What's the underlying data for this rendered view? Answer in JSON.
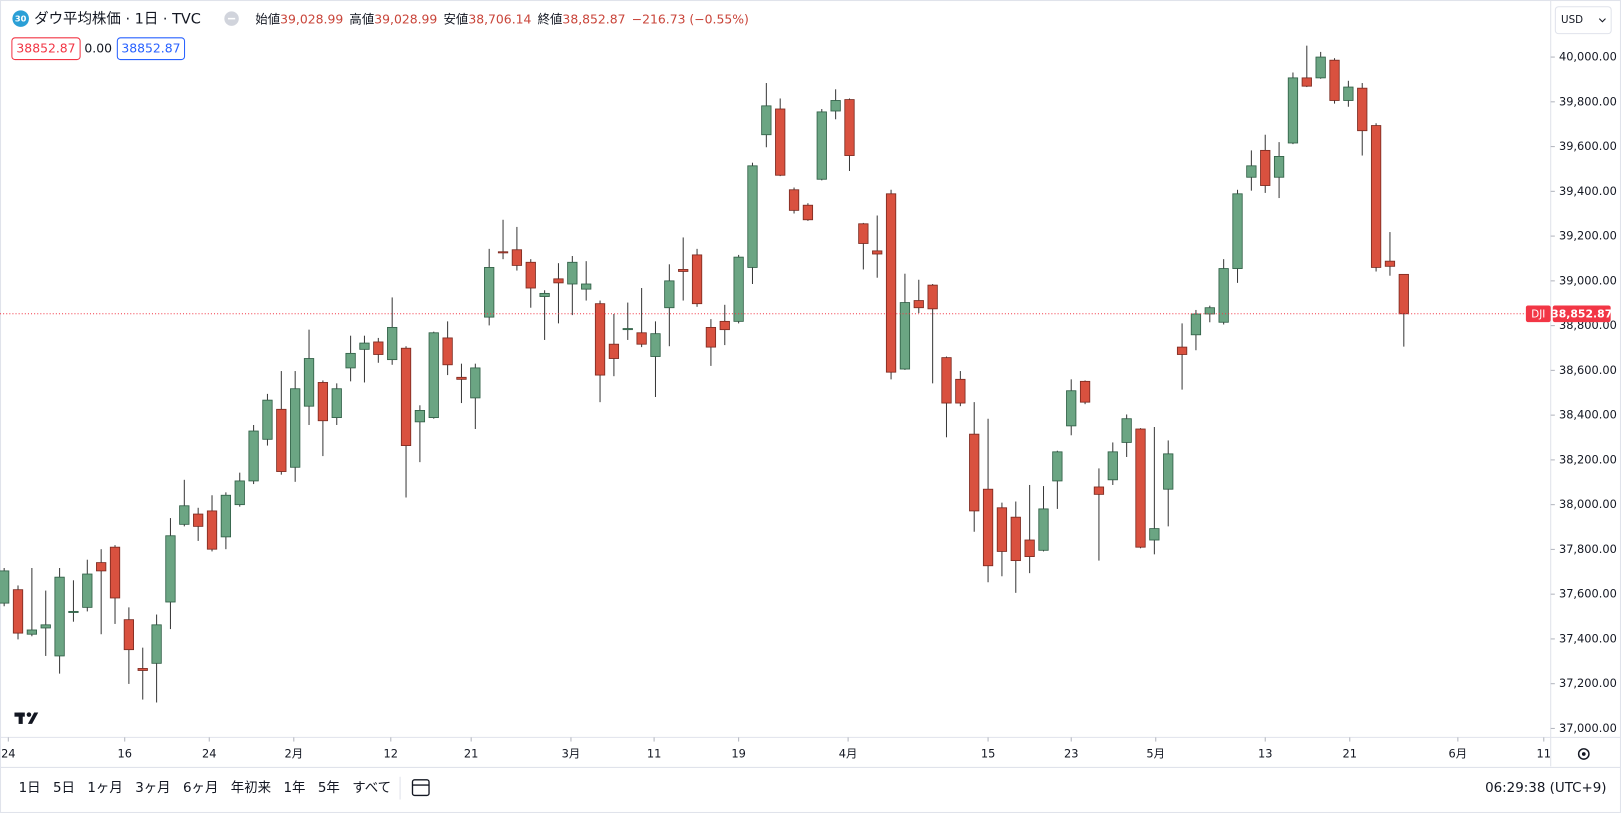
{
  "header": {
    "badge": "30",
    "title": "ダウ平均株価 · 1日 · TVC",
    "ohlc": [
      {
        "label": "始値",
        "value": "39,028.99"
      },
      {
        "label": "高値",
        "value": "39,028.99"
      },
      {
        "label": "安値",
        "value": "38,706.14"
      },
      {
        "label": "終値",
        "value": "38,852.87"
      }
    ],
    "change": "−216.73 (−0.55%)"
  },
  "price_boxes": [
    "38852.87",
    "0.00",
    "38852.87"
  ],
  "currency": "USD",
  "toolbar": {
    "ranges": [
      "1日",
      "5日",
      "1ヶ月",
      "3ヶ月",
      "6ヶ月",
      "年初来",
      "1年",
      "5年",
      "すべて"
    ],
    "clock": "06:29:38 (UTC+9)"
  },
  "chart_data": {
    "type": "candlestick",
    "up_color": "#6ba583",
    "down_color": "#d9513f",
    "open": [
      37560,
      37620,
      37421,
      37449,
      37324,
      37518,
      37541,
      37741,
      37810,
      37486,
      37268,
      37291,
      37565,
      37912,
      37958,
      37972,
      37856,
      38000,
      38106,
      38292,
      38426,
      38167,
      38440,
      38546,
      38389,
      38611,
      38694,
      38727,
      38648,
      38699,
      38370,
      38389,
      38745,
      38569,
      38477,
      38838,
      39130,
      39139,
      39083,
      38930,
      39009,
      38986,
      38963,
      38898,
      38717,
      38782,
      38768,
      38662,
      38880,
      39051,
      39116,
      38792,
      38819,
      38819,
      39060,
      39653,
      39768,
      39407,
      39338,
      39454,
      39759,
      39810,
      39255,
      39134,
      39389,
      38606,
      38912,
      38981,
      38657,
      38560,
      38315,
      38069,
      37986,
      37944,
      37842,
      37796,
      38106,
      38352,
      38551,
      38079,
      38111,
      38278,
      38338,
      37842,
      38069,
      38704,
      38759,
      38852,
      38815,
      39055,
      39463,
      39583,
      39463,
      39616,
      39907,
      39907,
      39986,
      39806,
      39861,
      39694,
      39088,
      39028.99
    ],
    "high": [
      37717,
      37639,
      37717,
      37616,
      37717,
      37662,
      37754,
      37801,
      37819,
      37541,
      37361,
      37509,
      37940,
      38111,
      37986,
      38042,
      38055,
      38143,
      38356,
      38495,
      38597,
      38597,
      38782,
      38555,
      38542,
      38755,
      38755,
      38745,
      38926,
      38708,
      38444,
      38773,
      38819,
      38630,
      38630,
      39143,
      39273,
      39241,
      39097,
      38958,
      39079,
      39111,
      39088,
      38912,
      38852,
      38903,
      38968,
      38819,
      39074,
      39194,
      39143,
      38829,
      38893,
      39116,
      39528,
      39884,
      39815,
      39417,
      39347,
      39768,
      39856,
      39815,
      39259,
      39292,
      39407,
      39032,
      39005,
      38986,
      38662,
      38597,
      38458,
      38384,
      38009,
      38014,
      38088,
      38083,
      38241,
      38560,
      38555,
      38162,
      38278,
      38403,
      38342,
      38347,
      38287,
      38810,
      38870,
      38889,
      39097,
      39407,
      39583,
      39653,
      39620,
      39931,
      40051,
      40023,
      39995,
      39894,
      39884,
      39704,
      39218,
      39028.99
    ],
    "low": [
      37546,
      37398,
      37412,
      37324,
      37245,
      37477,
      37523,
      37421,
      37467,
      37199,
      37129,
      37116,
      37444,
      37903,
      37838,
      37791,
      37801,
      37991,
      38092,
      38264,
      38134,
      38102,
      38356,
      38217,
      38356,
      38551,
      38546,
      38634,
      38625,
      38032,
      38190,
      38384,
      38579,
      38454,
      38338,
      38801,
      39097,
      39046,
      38880,
      38736,
      38810,
      38847,
      38912,
      38458,
      38574,
      38736,
      38704,
      38481,
      38708,
      38912,
      38884,
      38620,
      38713,
      38810,
      38986,
      39597,
      39468,
      39301,
      39268,
      39449,
      39722,
      39491,
      39051,
      39014,
      38560,
      38602,
      38856,
      38542,
      38301,
      38440,
      37879,
      37653,
      37680,
      37606,
      37694,
      37791,
      37981,
      38310,
      38449,
      37750,
      38088,
      38213,
      37805,
      37778,
      37903,
      38514,
      38690,
      38815,
      38805,
      38991,
      39403,
      39393,
      39370,
      39611,
      39866,
      39903,
      39792,
      39778,
      39560,
      39042,
      39023,
      38706.14
    ],
    "close": [
      37704,
      37426,
      37440,
      37463,
      37676,
      37523,
      37690,
      37704,
      37583,
      37352,
      37259,
      37463,
      37861,
      37995,
      37903,
      37801,
      38042,
      38106,
      38329,
      38467,
      38148,
      38518,
      38653,
      38375,
      38518,
      38676,
      38722,
      38671,
      38792,
      38264,
      38421,
      38768,
      38625,
      38560,
      38611,
      39060,
      39125,
      39069,
      38968,
      38944,
      38991,
      39083,
      38986,
      38579,
      38653,
      38787,
      38717,
      38764,
      39000,
      39042,
      38898,
      38704,
      38782,
      39106,
      39514,
      39782,
      39472,
      39315,
      39273,
      39755,
      39806,
      39560,
      39167,
      39120,
      38592,
      38903,
      38880,
      38875,
      38454,
      38454,
      37972,
      37727,
      37791,
      37750,
      37768,
      37981,
      38236,
      38509,
      38458,
      38046,
      38236,
      38384,
      37810,
      37893,
      38227,
      38671,
      38852,
      38880,
      39055,
      39389,
      39514,
      39426,
      39556,
      39907,
      39870,
      40000,
      39806,
      39866,
      39671,
      39060,
      39065,
      38852.87
    ],
    "xlim": [
      -0.3,
      111.6
    ],
    "xticks": [
      {
        "value": 0.3,
        "label": "24"
      },
      {
        "value": 8.7,
        "label": "16"
      },
      {
        "value": 14.8,
        "label": "24"
      },
      {
        "value": 20.9,
        "label": "2月"
      },
      {
        "value": 27.9,
        "label": "12"
      },
      {
        "value": 33.7,
        "label": "21"
      },
      {
        "value": 40.9,
        "label": "3月"
      },
      {
        "value": 46.9,
        "label": "11"
      },
      {
        "value": 53.0,
        "label": "19"
      },
      {
        "value": 60.9,
        "label": "4月"
      },
      {
        "value": 71.0,
        "label": "15"
      },
      {
        "value": 77.0,
        "label": "23"
      },
      {
        "value": 83.1,
        "label": "5月"
      },
      {
        "value": 91.0,
        "label": "13"
      },
      {
        "value": 97.1,
        "label": "21"
      },
      {
        "value": 104.9,
        "label": "6月"
      },
      {
        "value": 111.1,
        "label": "11"
      }
    ],
    "ylim": [
      36960,
      40255
    ],
    "yticks": [
      {
        "value": 37000,
        "label": "37,000.00"
      },
      {
        "value": 37200,
        "label": "37,200.00"
      },
      {
        "value": 37400,
        "label": "37,400.00"
      },
      {
        "value": 37600,
        "label": "37,600.00"
      },
      {
        "value": 37800,
        "label": "37,800.00"
      },
      {
        "value": 38000,
        "label": "38,000.00"
      },
      {
        "value": 38200,
        "label": "38,200.00"
      },
      {
        "value": 38400,
        "label": "38,400.00"
      },
      {
        "value": 38600,
        "label": "38,600.00"
      },
      {
        "value": 38800,
        "label": "38,800.00"
      },
      {
        "value": 39000,
        "label": "39,000.00"
      },
      {
        "value": 39200,
        "label": "39,200.00"
      },
      {
        "value": 39400,
        "label": "39,400.00"
      },
      {
        "value": 39600,
        "label": "39,600.00"
      },
      {
        "value": 39800,
        "label": "39,800.00"
      },
      {
        "value": 40000,
        "label": "40,000.00"
      }
    ],
    "price_line": {
      "symbol": "DJI",
      "value": 38852.87,
      "label": "38,852.87",
      "color": "#f23645"
    }
  }
}
